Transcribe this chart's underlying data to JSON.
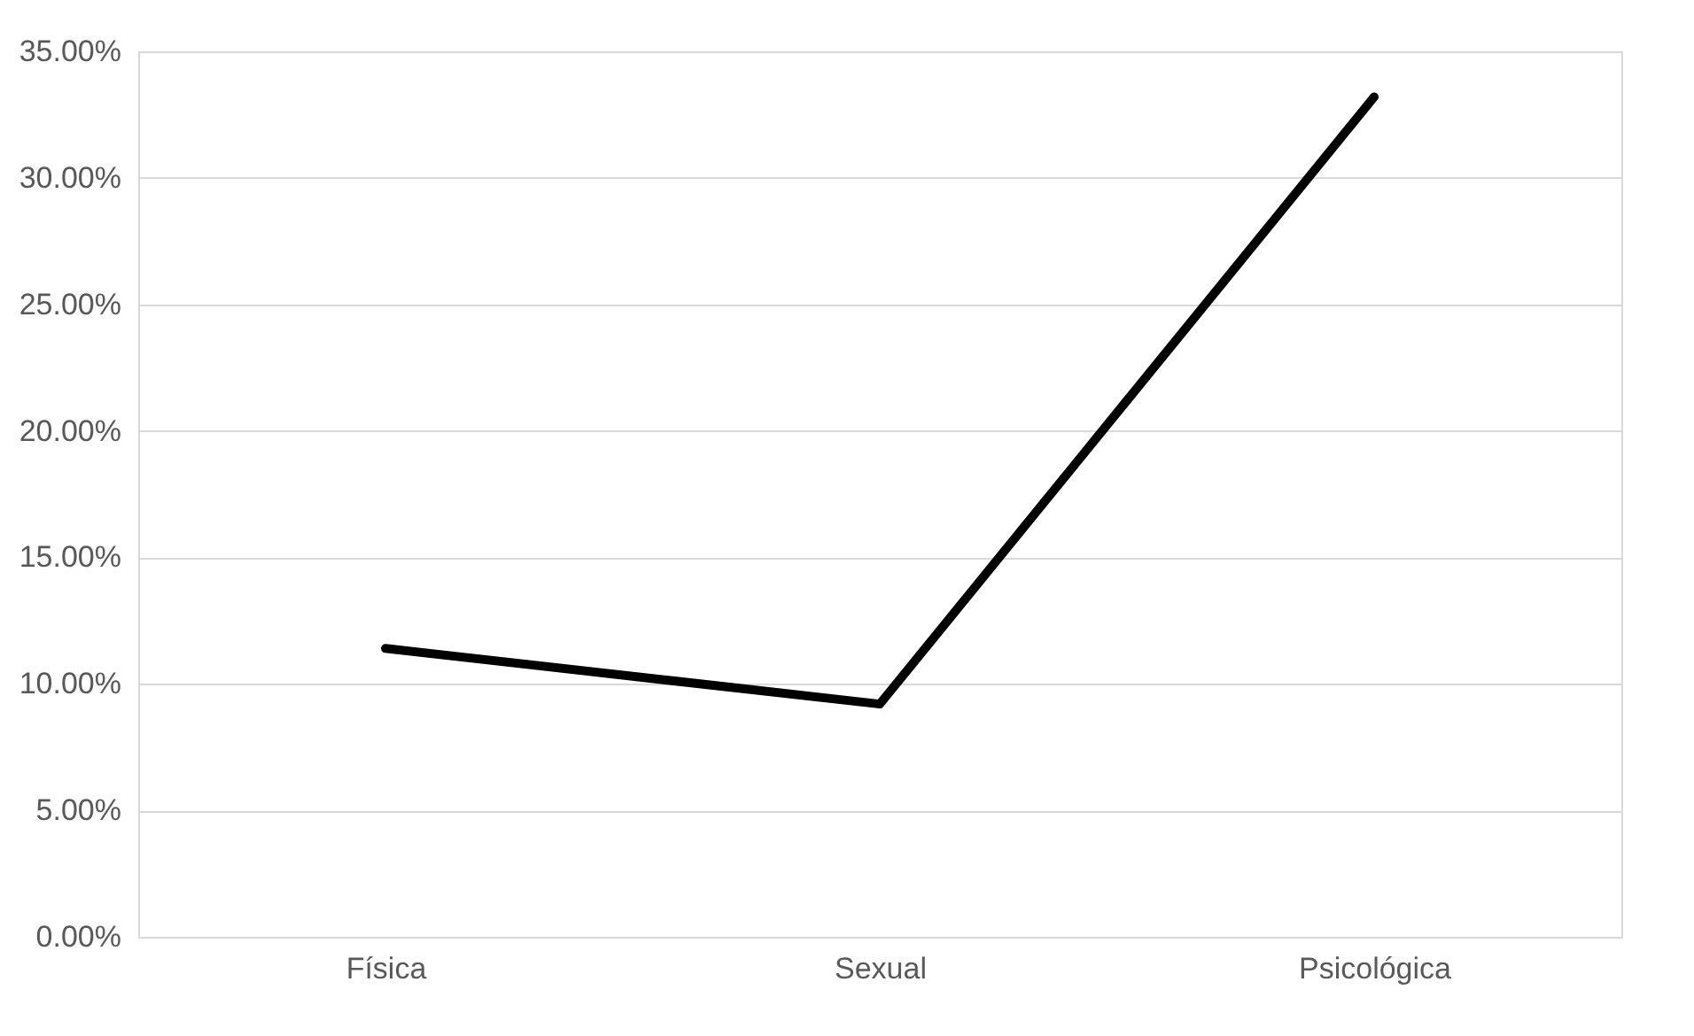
{
  "chart_data": {
    "type": "line",
    "categories": [
      "Física",
      "Sexual",
      "Psicológica"
    ],
    "series": [
      {
        "color": "#000000",
        "values": [
          11.4,
          9.2,
          33.2
        ]
      }
    ],
    "ylim": [
      0,
      35
    ],
    "yticks": [
      {
        "value": 0,
        "label": "0.00%"
      },
      {
        "value": 5,
        "label": "5.00%"
      },
      {
        "value": 10,
        "label": "10.00%"
      },
      {
        "value": 15,
        "label": "15.00%"
      },
      {
        "value": 20,
        "label": "20.00%"
      },
      {
        "value": 25,
        "label": "25.00%"
      },
      {
        "value": 30,
        "label": "30.00%"
      },
      {
        "value": 35,
        "label": "35.00%"
      }
    ],
    "grid": "y",
    "marker": "none",
    "line_style": "solid"
  }
}
